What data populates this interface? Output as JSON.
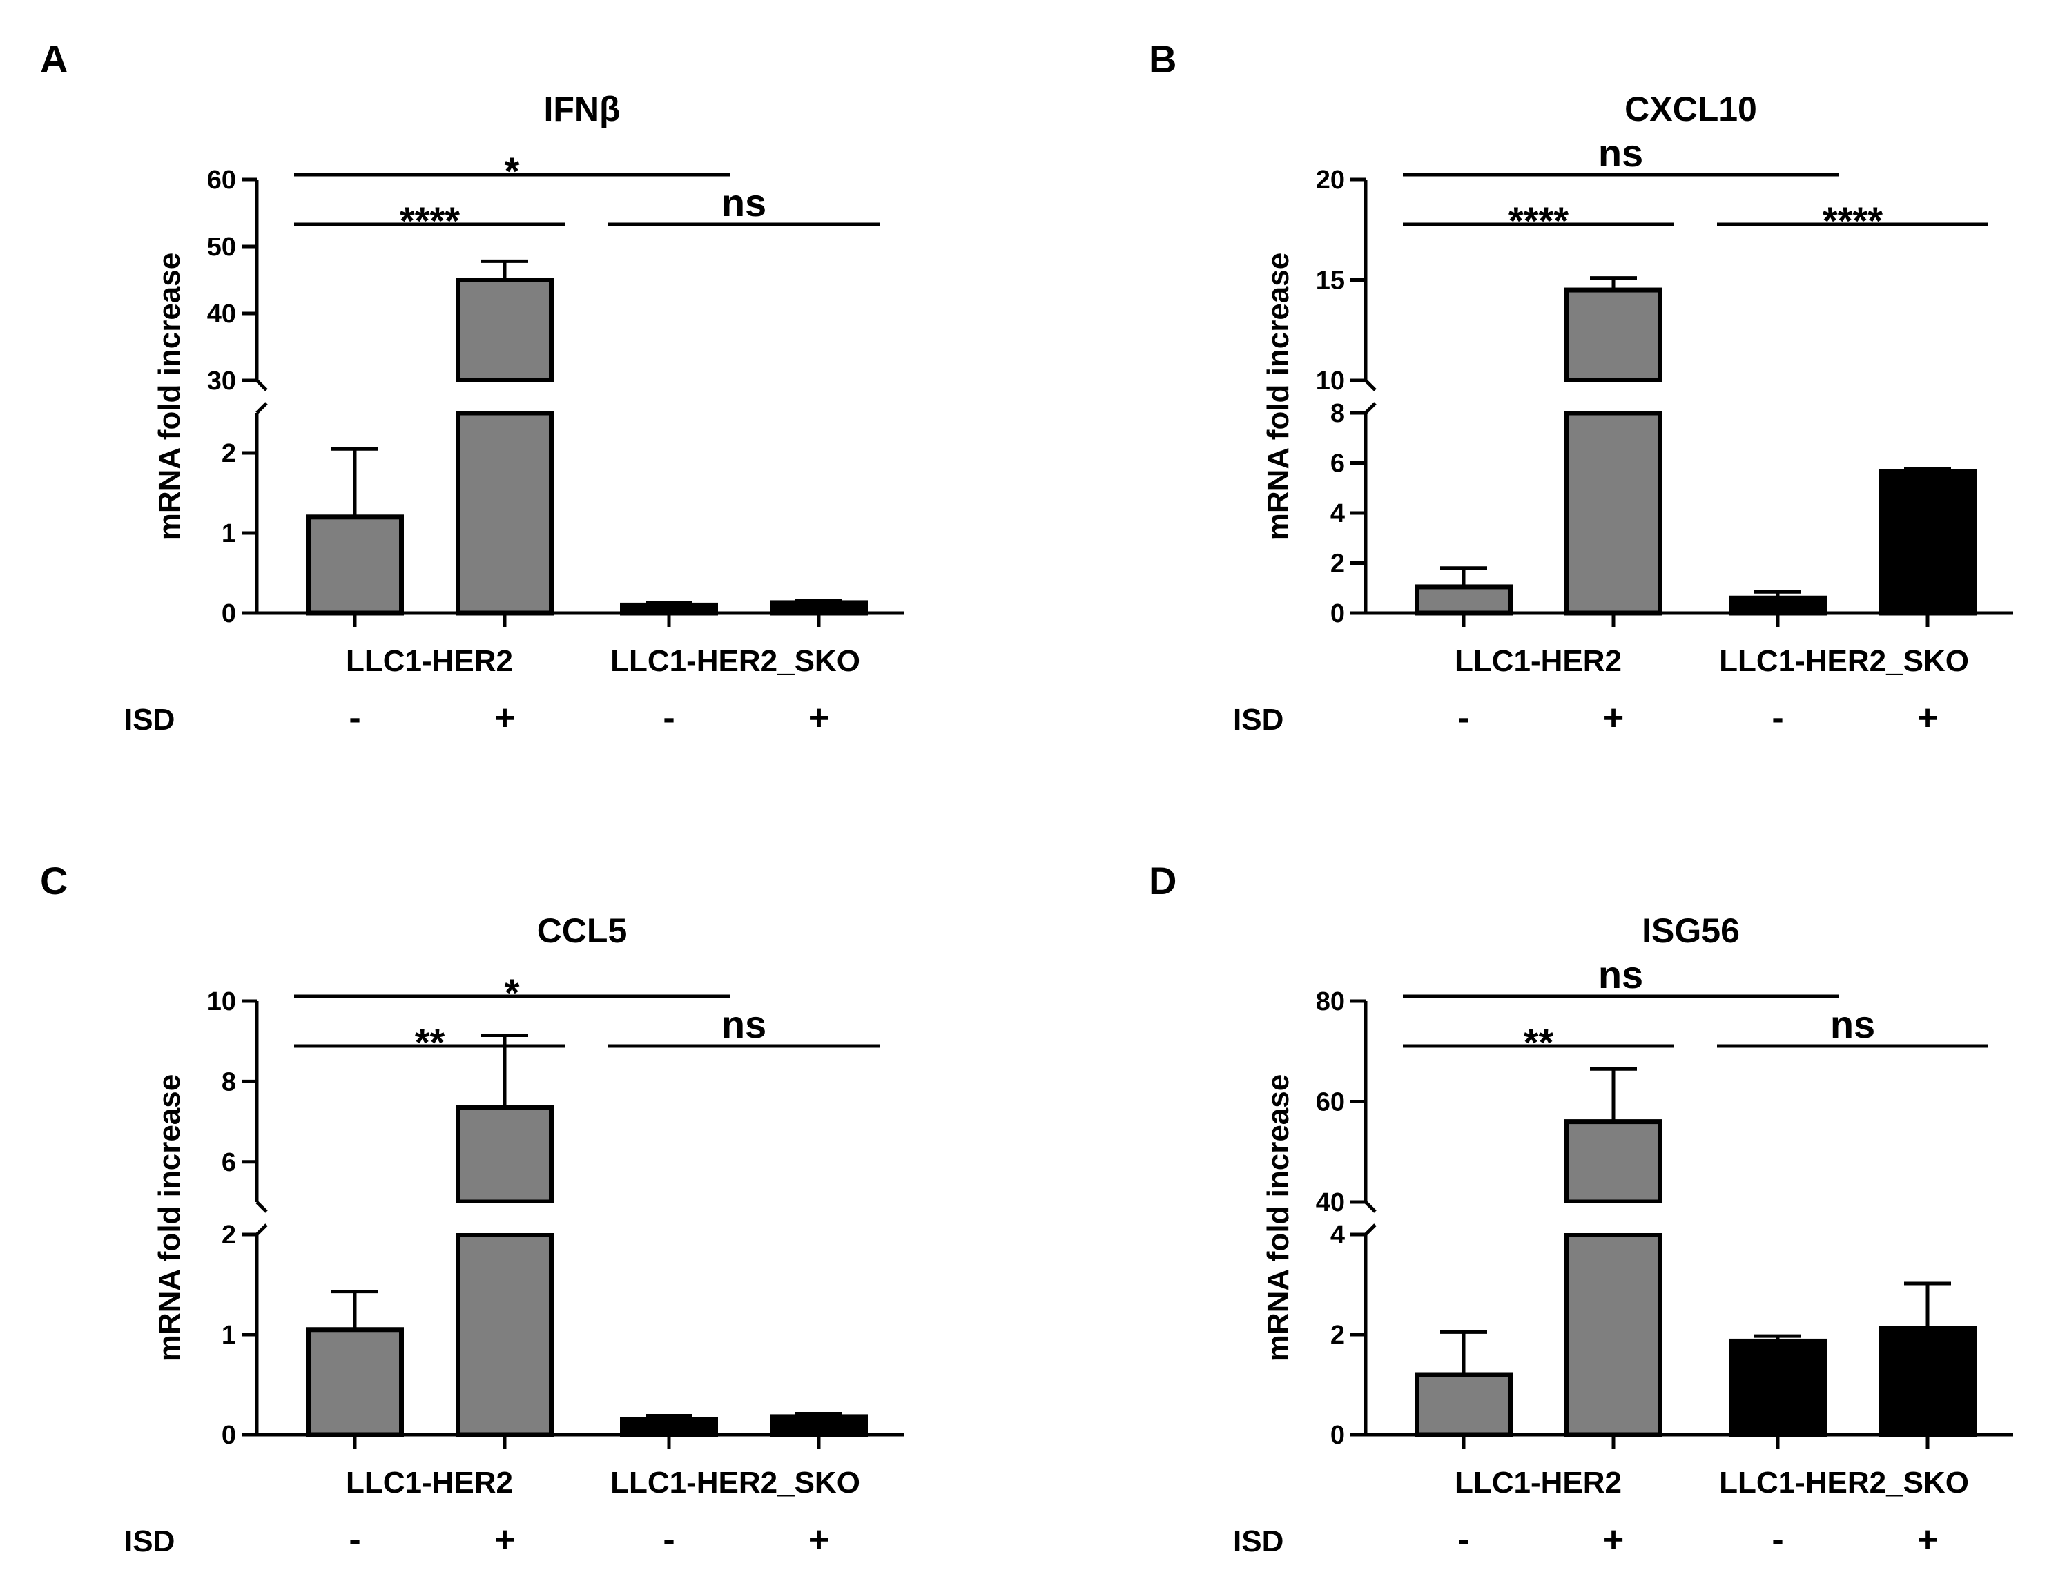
{
  "colors": {
    "control_bar": "#7f7f7f",
    "sko_bar": "#000000",
    "line": "#000000",
    "background": "#ffffff"
  },
  "chart_data": [
    {
      "panel": "A",
      "type": "bar",
      "title": "IFNβ",
      "ylabel": "mRNA fold increase",
      "broken_axis": true,
      "lower_ylim": [
        0,
        2.5
      ],
      "lower_ticks": [
        "0",
        "1",
        "2"
      ],
      "upper_ylim": [
        30,
        60
      ],
      "upper_ticks": [
        "30",
        "40",
        "50",
        "60"
      ],
      "groups": [
        "LLC1-HER2",
        "LLC1-HER2_SKO"
      ],
      "treatment_label": "ISD",
      "treatment_signs": [
        "-",
        "+",
        "-",
        "+"
      ],
      "values": [
        1.2,
        45,
        0.1,
        0.13
      ],
      "errors": [
        0.85,
        2.8,
        0.03,
        0.03
      ],
      "comparisons": [
        {
          "from": 0,
          "to": 1,
          "label": "****",
          "level": 1
        },
        {
          "from": 0,
          "to": 2,
          "label": "*",
          "level": 2
        },
        {
          "from": 2,
          "to": 3,
          "label": "ns",
          "level": 1
        }
      ]
    },
    {
      "panel": "B",
      "type": "bar",
      "title": "CXCL10",
      "ylabel": "mRNA fold increase",
      "broken_axis": true,
      "lower_ylim": [
        0,
        8
      ],
      "lower_ticks": [
        "0",
        "2",
        "4",
        "6",
        "8"
      ],
      "upper_ylim": [
        10,
        20
      ],
      "upper_ticks": [
        "10",
        "15",
        "20"
      ],
      "groups": [
        "LLC1-HER2",
        "LLC1-HER2_SKO"
      ],
      "treatment_label": "ISD",
      "treatment_signs": [
        "-",
        "+",
        "-",
        "+"
      ],
      "values": [
        1.05,
        14.5,
        0.6,
        5.65
      ],
      "errors": [
        0.75,
        0.6,
        0.25,
        0.12
      ],
      "comparisons": [
        {
          "from": 0,
          "to": 1,
          "label": "****",
          "level": 1
        },
        {
          "from": 0,
          "to": 2,
          "label": "ns",
          "level": 2
        },
        {
          "from": 2,
          "to": 3,
          "label": "****",
          "level": 1
        }
      ]
    },
    {
      "panel": "C",
      "type": "bar",
      "title": "CCL5",
      "ylabel": "mRNA fold increase",
      "broken_axis": true,
      "lower_ylim": [
        0,
        2
      ],
      "lower_ticks": [
        "0",
        "1",
        "2"
      ],
      "upper_ylim": [
        5,
        10
      ],
      "upper_ticks": [
        "6",
        "8",
        "10"
      ],
      "groups": [
        "LLC1-HER2",
        "LLC1-HER2_SKO"
      ],
      "treatment_label": "ISD",
      "treatment_signs": [
        "-",
        "+",
        "-",
        "+"
      ],
      "values": [
        1.05,
        7.35,
        0.15,
        0.18
      ],
      "errors": [
        0.38,
        1.8,
        0.04,
        0.03
      ],
      "comparisons": [
        {
          "from": 0,
          "to": 1,
          "label": "**",
          "level": 1
        },
        {
          "from": 0,
          "to": 2,
          "label": "*",
          "level": 2
        },
        {
          "from": 2,
          "to": 3,
          "label": "ns",
          "level": 1
        }
      ]
    },
    {
      "panel": "D",
      "type": "bar",
      "title": "ISG56",
      "ylabel": "mRNA fold increase",
      "broken_axis": true,
      "lower_ylim": [
        0,
        4
      ],
      "lower_ticks": [
        "0",
        "2",
        "4"
      ],
      "upper_ylim": [
        40,
        80
      ],
      "upper_ticks": [
        "40",
        "60",
        "80"
      ],
      "groups": [
        "LLC1-HER2",
        "LLC1-HER2_SKO"
      ],
      "treatment_label": "ISD",
      "treatment_signs": [
        "-",
        "+",
        "-",
        "+"
      ],
      "values": [
        1.2,
        56,
        1.87,
        2.12
      ],
      "errors": [
        0.85,
        10.5,
        0.1,
        0.9
      ],
      "comparisons": [
        {
          "from": 0,
          "to": 1,
          "label": "**",
          "level": 1
        },
        {
          "from": 0,
          "to": 2,
          "label": "ns",
          "level": 2
        },
        {
          "from": 2,
          "to": 3,
          "label": "ns",
          "level": 1
        }
      ]
    }
  ]
}
